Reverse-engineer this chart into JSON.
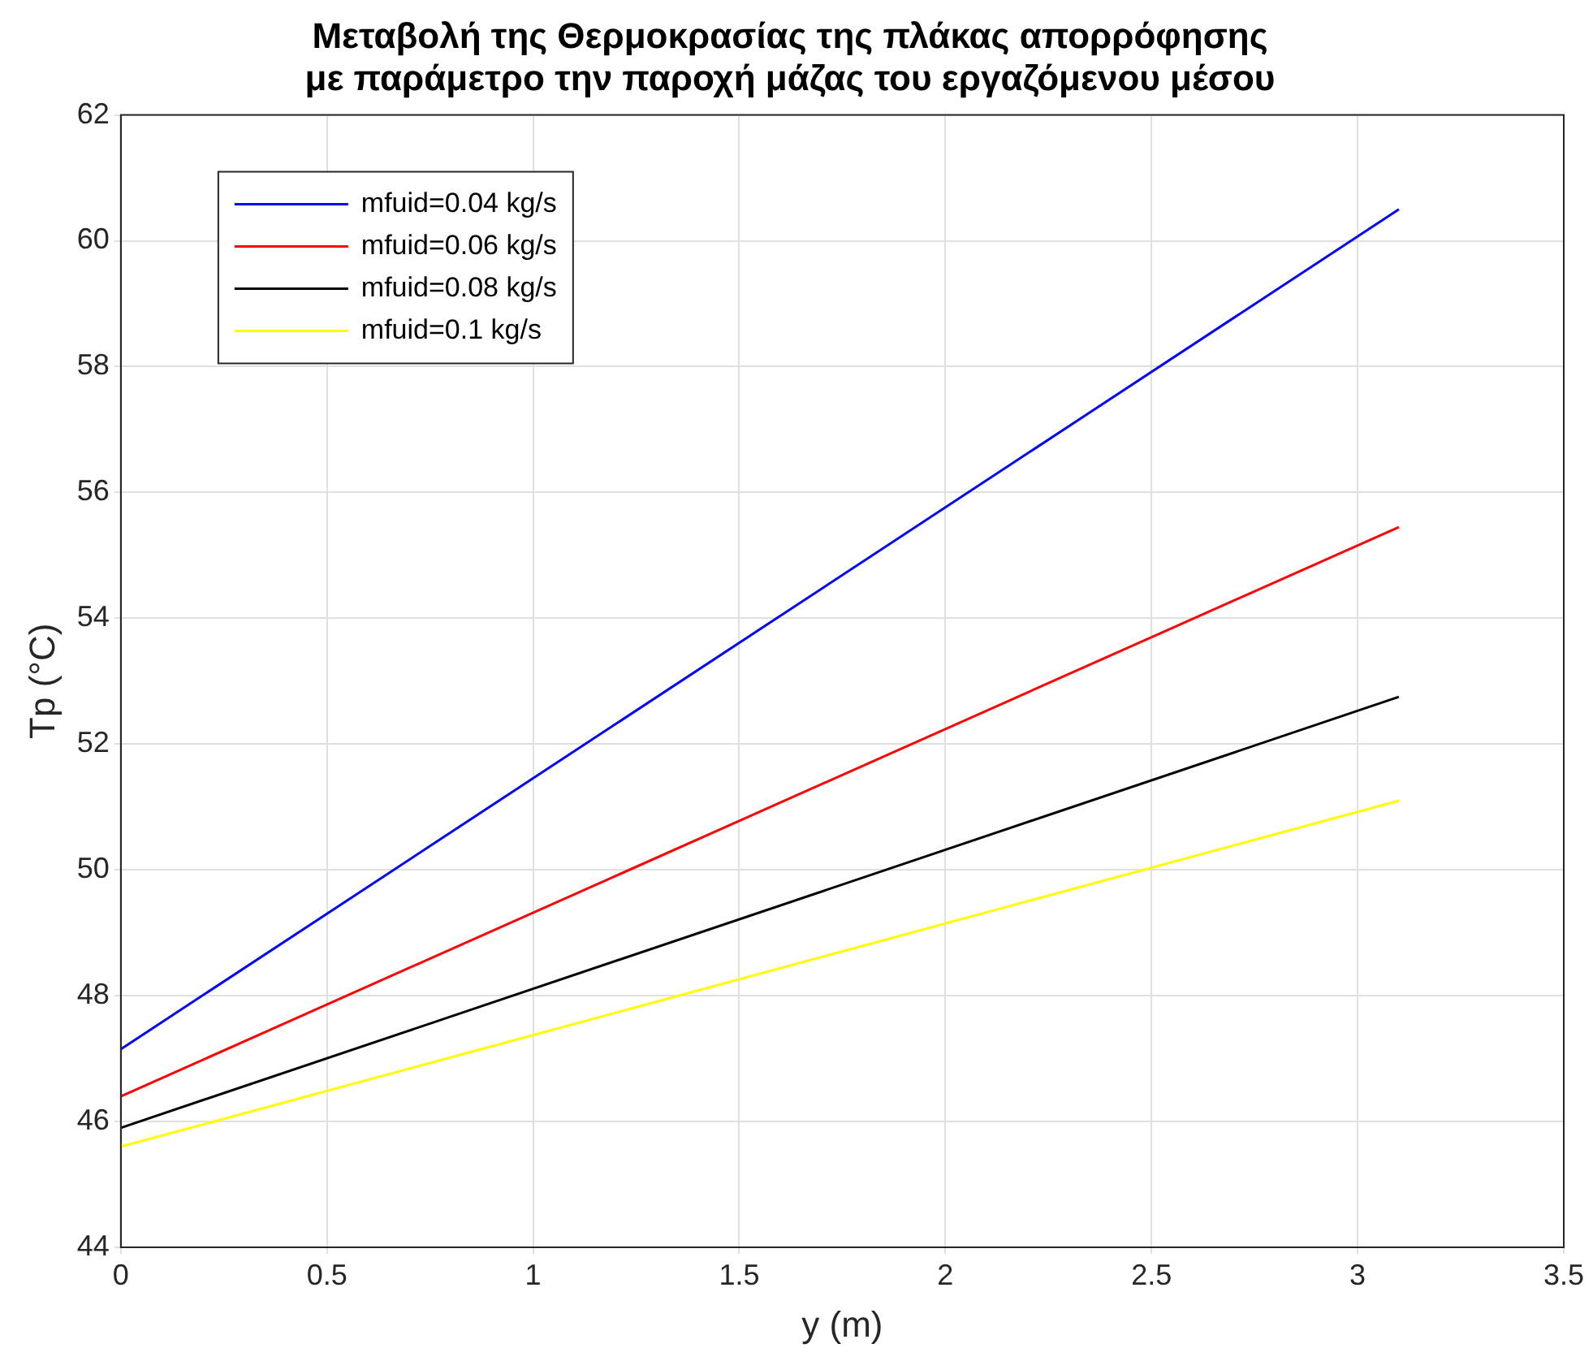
{
  "chart_data": {
    "type": "line",
    "title": "Μεταβολή της Θερμοκρασίας της πλάκας απορρόφησης\nμε παράμετρο την παροχή μάζας του εργαζόμενου μέσου",
    "xlabel": "y (m)",
    "ylabel": "Tp (°C)",
    "x": [
      0,
      3.1
    ],
    "series": [
      {
        "name": "mfuid=0.04 kg/s",
        "color": "#0000ff",
        "values": [
          47.15,
          60.5
        ]
      },
      {
        "name": "mfuid=0.06 kg/s",
        "color": "#ff0000",
        "values": [
          46.4,
          55.45
        ]
      },
      {
        "name": "mfuid=0.08 kg/s",
        "color": "#000000",
        "values": [
          45.9,
          52.75
        ]
      },
      {
        "name": "mfuid=0.1 kg/s",
        "color": "#ffff00",
        "values": [
          45.6,
          51.1
        ]
      }
    ],
    "xlim": [
      0,
      3.5
    ],
    "xticks": [
      0,
      0.5,
      1,
      1.5,
      2,
      2.5,
      3,
      3.5
    ],
    "ylim": [
      44,
      62
    ],
    "yticks": [
      44,
      46,
      48,
      50,
      52,
      54,
      56,
      58,
      60,
      62
    ],
    "grid": true,
    "legend": "top left",
    "marker": "none",
    "line_style": "solid"
  }
}
